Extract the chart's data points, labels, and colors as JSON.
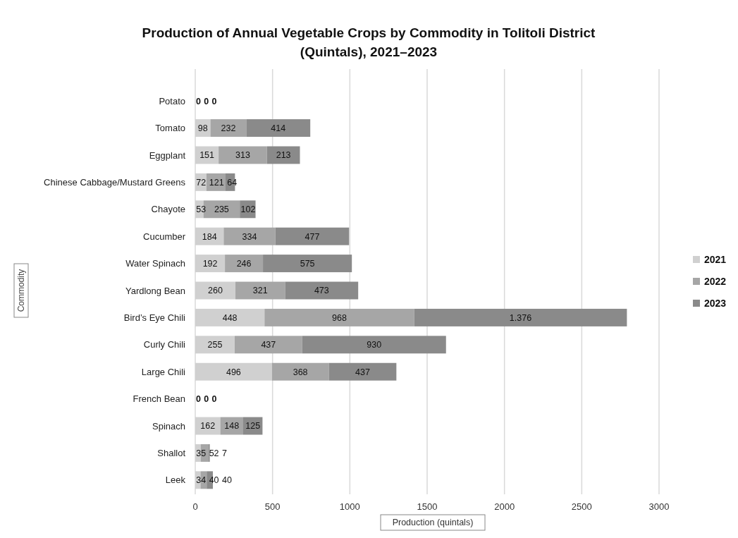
{
  "chart_data": {
    "type": "bar",
    "orientation": "horizontal",
    "stacked": true,
    "title": "Production of Annual Vegetable Crops by Commodity in Tolitoli District (Quintals), 2021–2023",
    "xlabel": "Production (quintals)",
    "ylabel": "Commodity",
    "categories": [
      "Potato",
      "Tomato",
      "Eggplant",
      "Chinese Cabbage/Mustard Greens",
      "Chayote",
      "Cucumber",
      "Water Spinach",
      "Yardlong Bean",
      "Bird’s Eye Chili",
      "Curly Chili",
      "Large Chili",
      "French Bean",
      "Spinach",
      "Shallot",
      "Leek"
    ],
    "series": [
      {
        "name": "2021",
        "color": "#d0d0d0",
        "values": [
          0,
          98,
          151,
          72,
          53,
          184,
          192,
          260,
          448,
          255,
          496,
          0,
          162,
          35,
          34
        ],
        "value_labels": [
          "0",
          "98",
          "151",
          "72",
          "53",
          "184",
          "192",
          "260",
          "448",
          "255",
          "496",
          "0",
          "162",
          "35",
          "34"
        ]
      },
      {
        "name": "2022",
        "color": "#a6a6a6",
        "values": [
          0,
          232,
          313,
          121,
          235,
          334,
          246,
          321,
          968,
          437,
          368,
          0,
          148,
          52,
          40
        ],
        "value_labels": [
          "0",
          "232",
          "313",
          "121",
          "235",
          "334",
          "246",
          "321",
          "968",
          "437",
          "368",
          "0",
          "148",
          "52",
          "40"
        ]
      },
      {
        "name": "2023",
        "color": "#8a8a8a",
        "values": [
          0,
          414,
          213,
          64,
          102,
          477,
          575,
          473,
          1376,
          930,
          437,
          0,
          125,
          7,
          40
        ],
        "value_labels": [
          "0",
          "414",
          "213",
          "64",
          "102",
          "477",
          "575",
          "473",
          "1.376",
          "930",
          "437",
          "0",
          "125",
          "7",
          "40"
        ]
      }
    ],
    "xlim": [
      0,
      3000
    ],
    "xticks": [
      0,
      500,
      1000,
      1500,
      2000,
      2500,
      3000
    ],
    "grid": "x",
    "legend": "right"
  }
}
